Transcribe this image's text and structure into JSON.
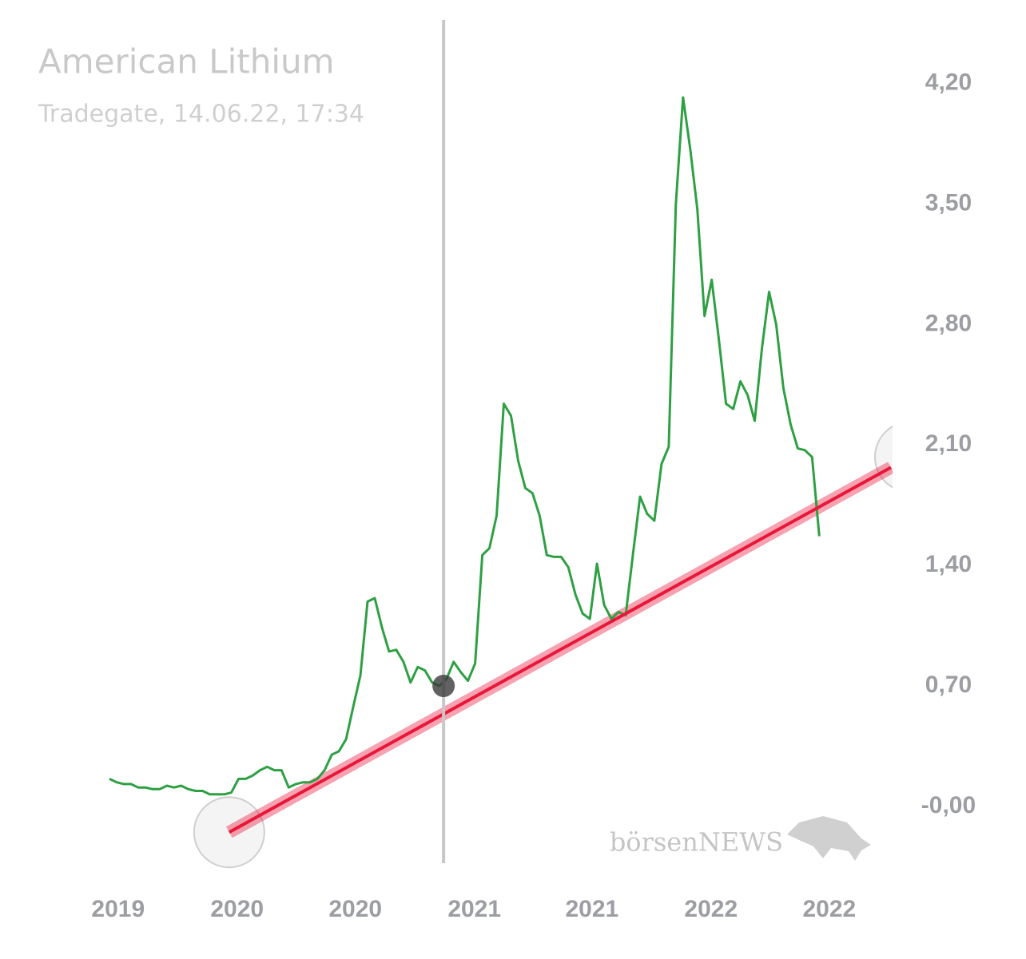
{
  "chart_data": {
    "type": "line",
    "title": "American Lithium",
    "subtitle": "Tradegate, 14.06.22, 17:34",
    "watermark": "börsenNEWS",
    "color": "#2ea043",
    "values": [
      0.16,
      0.14,
      0.13,
      0.13,
      0.11,
      0.11,
      0.1,
      0.1,
      0.12,
      0.11,
      0.12,
      0.1,
      0.09,
      0.09,
      0.07,
      0.07,
      0.07,
      0.08,
      0.16,
      0.16,
      0.18,
      0.21,
      0.23,
      0.21,
      0.21,
      0.11,
      0.13,
      0.14,
      0.14,
      0.16,
      0.21,
      0.3,
      0.32,
      0.39,
      0.58,
      0.76,
      1.19,
      1.21,
      1.04,
      0.9,
      0.91,
      0.84,
      0.72,
      0.81,
      0.79,
      0.72,
      0.7,
      0.74,
      0.84,
      0.78,
      0.73,
      0.83,
      1.46,
      1.5,
      1.69,
      2.34,
      2.27,
      2.01,
      1.85,
      1.82,
      1.69,
      1.46,
      1.45,
      1.45,
      1.39,
      1.23,
      1.12,
      1.09,
      1.41,
      1.17,
      1.09,
      1.13,
      1.11,
      1.46,
      1.8,
      1.7,
      1.66,
      1.99,
      2.09,
      3.5,
      4.12,
      3.82,
      3.47,
      2.85,
      3.06,
      2.71,
      2.34,
      2.31,
      2.47,
      2.39,
      2.24,
      2.66,
      2.99,
      2.8,
      2.43,
      2.22,
      2.08,
      2.07,
      2.03,
      1.57
    ],
    "trendline": {
      "x": [
        16.7,
        109
      ],
      "values": [
        -0.15,
        1.97
      ],
      "color": "#e8173a"
    },
    "crosshair": {
      "x": 46.6,
      "value": 0.7
    },
    "xlim": [
      0,
      109
    ],
    "ylim": [
      -0.33,
      4.57
    ],
    "xticks": [
      {
        "value": 1.2,
        "label": "2019"
      },
      {
        "value": 17.8,
        "label": "2020"
      },
      {
        "value": 34.3,
        "label": "2020"
      },
      {
        "value": 50.9,
        "label": "2021"
      },
      {
        "value": 67.3,
        "label": "2021"
      },
      {
        "value": 83.9,
        "label": "2022"
      },
      {
        "value": 100.4,
        "label": "2022"
      }
    ],
    "yticks": [
      {
        "value": 4.2,
        "label": "4,20"
      },
      {
        "value": 3.5,
        "label": "3,50"
      },
      {
        "value": 2.8,
        "label": "2,80"
      },
      {
        "value": 2.1,
        "label": "2,10"
      },
      {
        "value": 1.4,
        "label": "1,40"
      },
      {
        "value": 0.7,
        "label": "0,70"
      },
      {
        "value": 0,
        "label": "-0,00"
      }
    ]
  }
}
